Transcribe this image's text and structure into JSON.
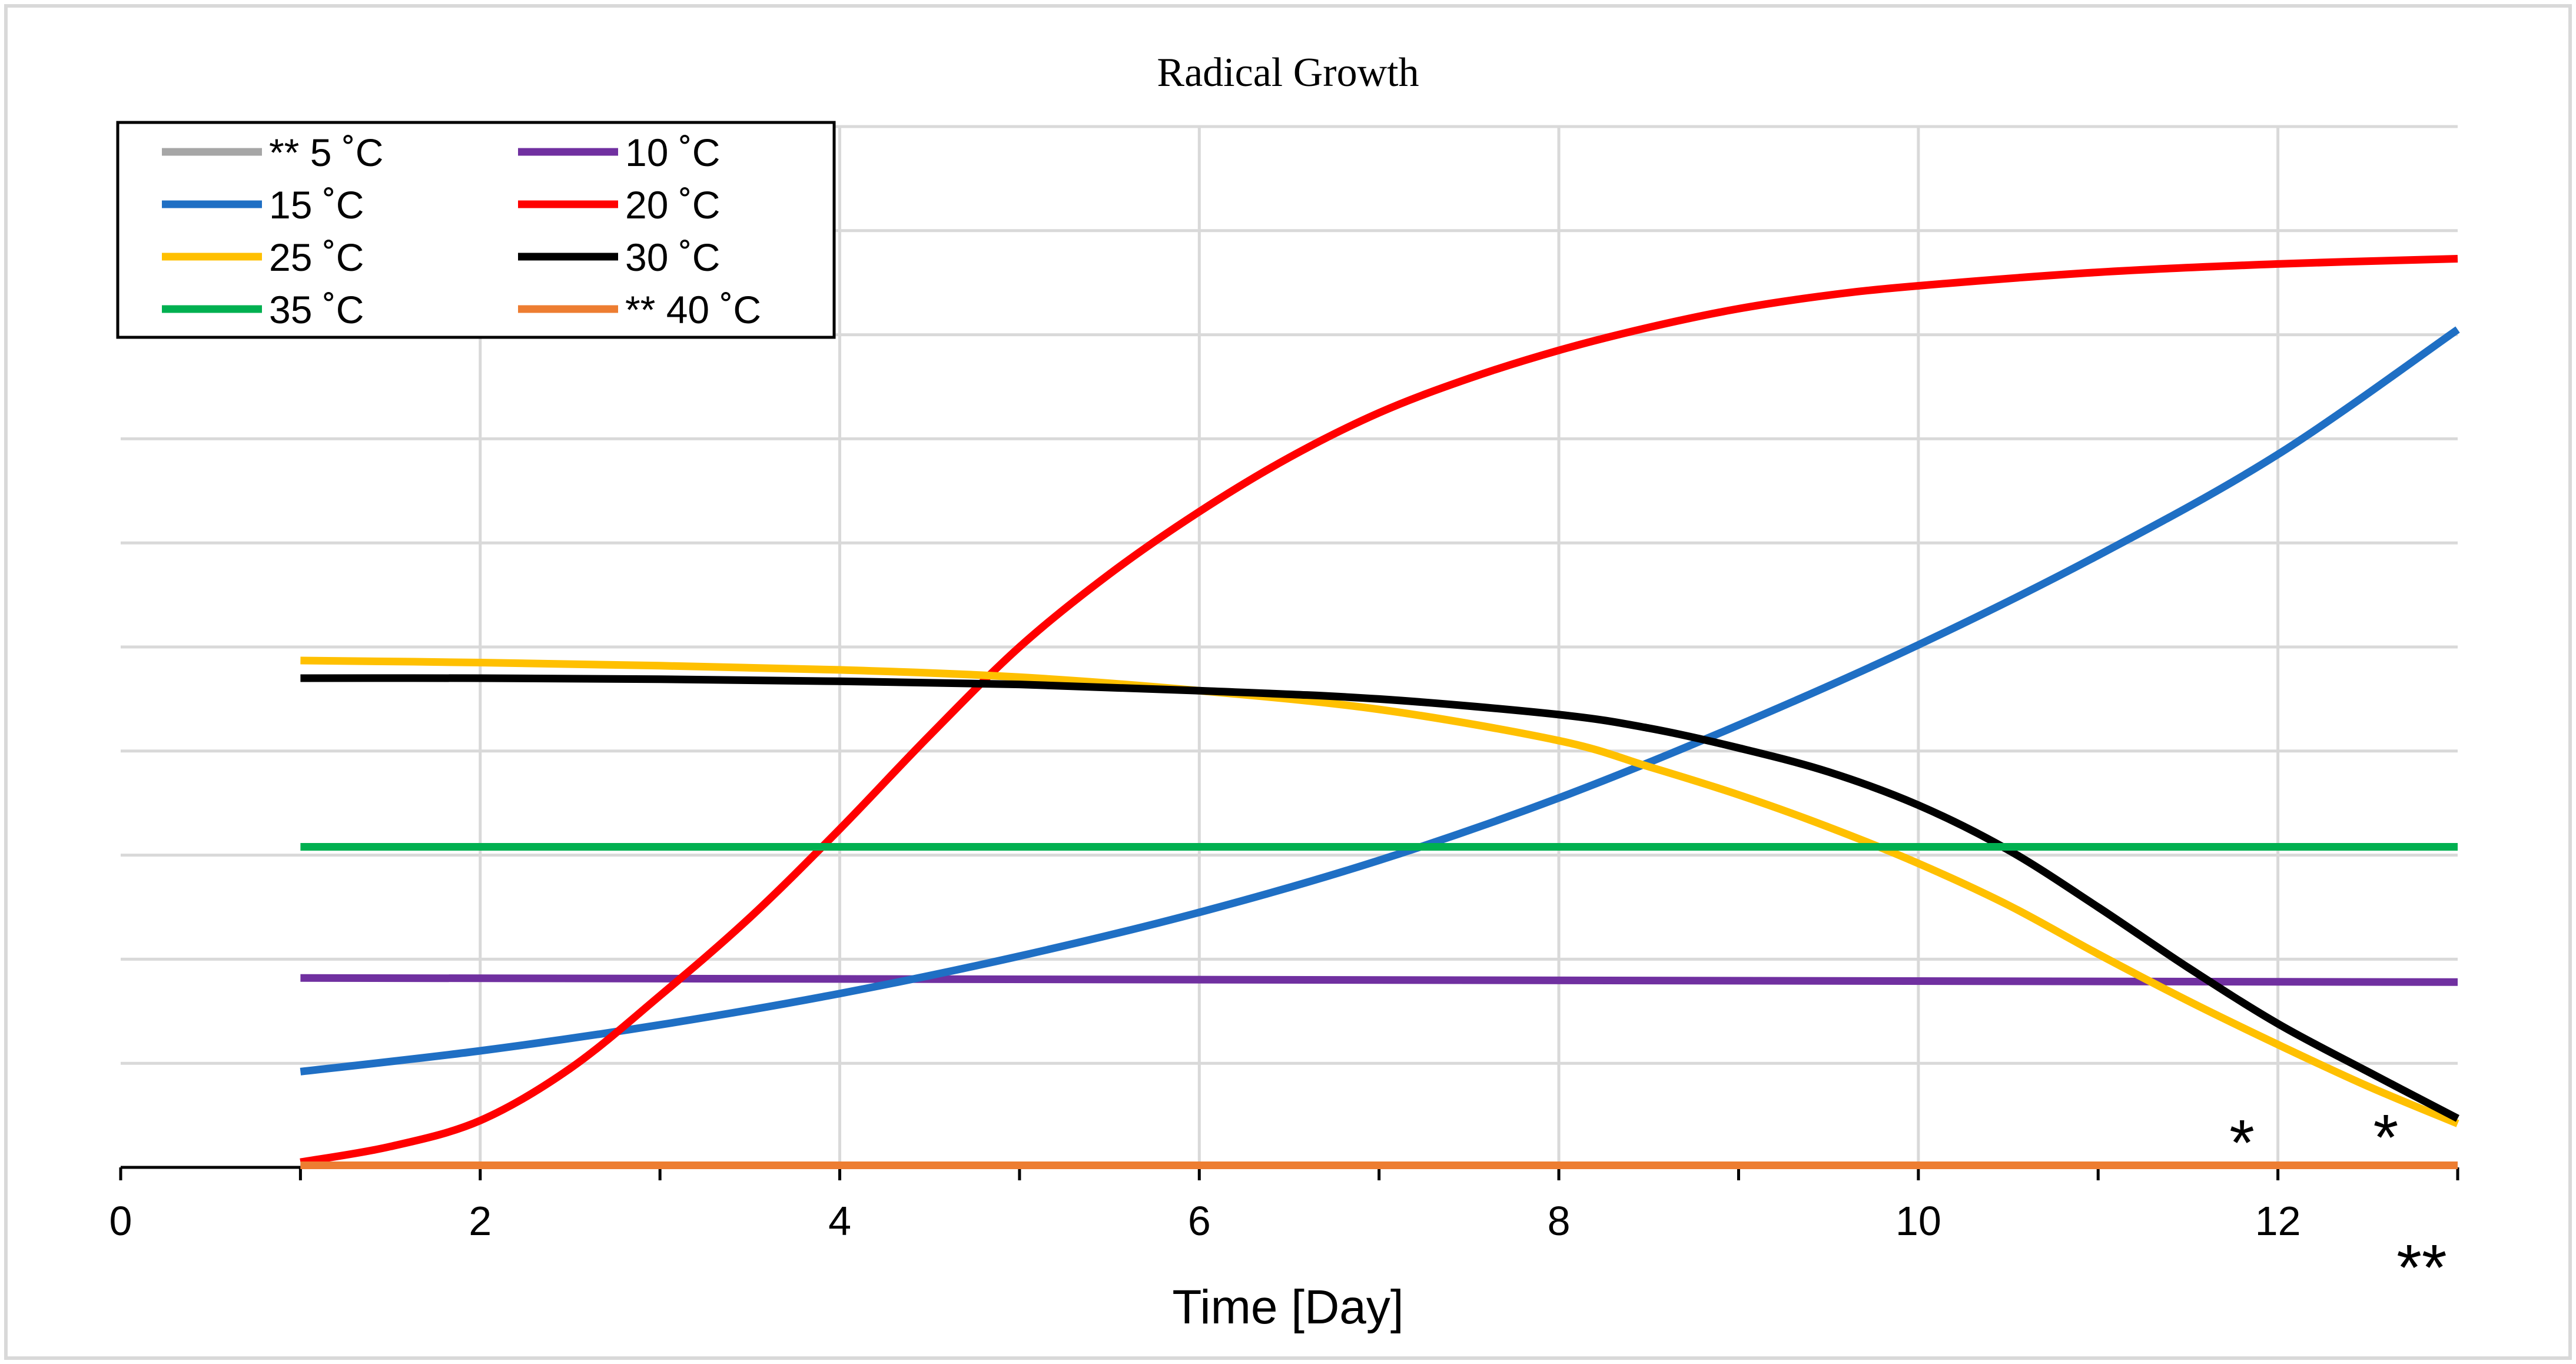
{
  "chart_data": {
    "type": "line",
    "title": "Radical Growth",
    "xlabel": "Time [Day]",
    "ylabel": "",
    "xlim": [
      0,
      13
    ],
    "ylim": [
      0,
      10
    ],
    "x_ticks": [
      "0",
      "2",
      "4",
      "6",
      "8",
      "10",
      "12"
    ],
    "x_tick_values": [
      0,
      2,
      4,
      6,
      8,
      10,
      12
    ],
    "grid": true,
    "legend_position": "top-left",
    "series": [
      {
        "name": "** 5 ˚C",
        "color": "#a6a6a6",
        "x": [
          1,
          13
        ],
        "y": [
          0.02,
          0.02
        ]
      },
      {
        "name": "10 ˚C",
        "color": "#7030a0",
        "x": [
          1,
          13
        ],
        "y": [
          1.82,
          1.78
        ]
      },
      {
        "name": "15 ˚C",
        "color": "#1f6fc4",
        "x": [
          1,
          2,
          3,
          4,
          5,
          6,
          7,
          8,
          9,
          10,
          11,
          12,
          13
        ],
        "y": [
          0.92,
          1.12,
          1.37,
          1.67,
          2.03,
          2.45,
          2.95,
          3.55,
          4.25,
          5.02,
          5.88,
          6.85,
          8.05
        ]
      },
      {
        "name": "20 ˚C",
        "color": "#ff0000",
        "x": [
          1,
          1.5,
          2,
          2.5,
          3,
          3.5,
          4,
          4.5,
          5,
          5.5,
          6,
          6.5,
          7,
          7.5,
          8,
          8.5,
          9,
          9.5,
          10,
          11,
          12,
          13
        ],
        "y": [
          0.05,
          0.2,
          0.45,
          0.95,
          1.65,
          2.4,
          3.25,
          4.15,
          5.0,
          5.7,
          6.3,
          6.82,
          7.25,
          7.58,
          7.85,
          8.07,
          8.25,
          8.38,
          8.47,
          8.6,
          8.68,
          8.73
        ]
      },
      {
        "name": "25 ˚C",
        "color": "#ffc000",
        "x": [
          1,
          2,
          3,
          4,
          5,
          6,
          7,
          8,
          8.5,
          9,
          9.5,
          10,
          10.5,
          11,
          11.5,
          12,
          12.5,
          13
        ],
        "y": [
          4.87,
          4.85,
          4.82,
          4.78,
          4.71,
          4.58,
          4.4,
          4.1,
          3.85,
          3.58,
          3.27,
          2.92,
          2.52,
          2.05,
          1.6,
          1.18,
          0.78,
          0.42
        ]
      },
      {
        "name": "30 ˚C",
        "color": "#000000",
        "x": [
          1,
          2,
          3,
          4,
          5,
          6,
          7,
          8,
          8.5,
          9,
          9.5,
          10,
          10.5,
          11,
          11.5,
          12,
          12.5,
          13
        ],
        "y": [
          4.7,
          4.7,
          4.69,
          4.67,
          4.64,
          4.58,
          4.5,
          4.35,
          4.22,
          4.03,
          3.8,
          3.48,
          3.05,
          2.5,
          1.92,
          1.38,
          0.92,
          0.47
        ]
      },
      {
        "name": "35 ˚C",
        "color": "#00b050",
        "x": [
          1,
          13
        ],
        "y": [
          3.08,
          3.08
        ]
      },
      {
        "name": "** 40 ˚C",
        "color": "#ed7d31",
        "x": [
          1,
          13
        ],
        "y": [
          0.02,
          0.02
        ]
      }
    ],
    "annotations": [
      {
        "text": "*",
        "x": 11.8,
        "y": 0.25
      },
      {
        "text": "*",
        "x": 12.6,
        "y": 0.3
      },
      {
        "text": "**",
        "x": 12.8,
        "y": -0.95
      }
    ]
  }
}
